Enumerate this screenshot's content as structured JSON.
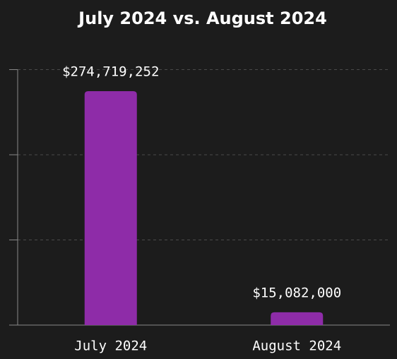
{
  "chart_data": {
    "type": "bar",
    "title": "July 2024 vs. August 2024",
    "categories": [
      "July 2024",
      "August 2024"
    ],
    "values": [
      274719252,
      15082000
    ],
    "value_labels": [
      "$274,719,252",
      "$15,082,000"
    ],
    "color": "#8e2ca8",
    "ylim": [
      0,
      300000000
    ],
    "yticks": [
      0,
      100000000,
      200000000,
      300000000
    ],
    "grid": true
  }
}
